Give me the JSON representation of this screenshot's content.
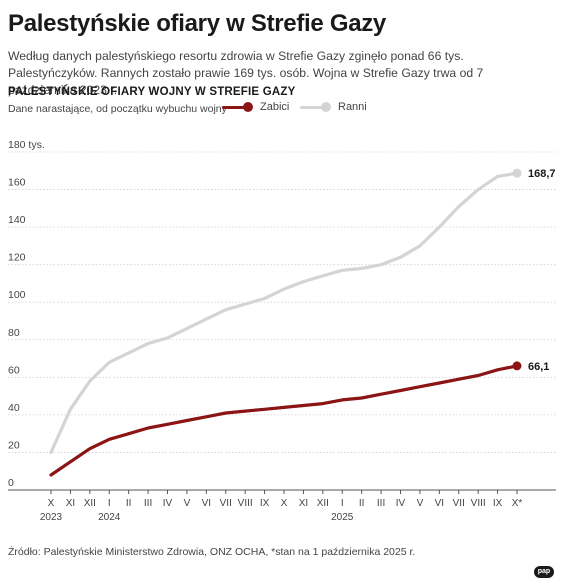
{
  "header": {
    "title": "Palestyńskie ofiary w Strefie Gazy",
    "subtitle": "Według danych palestyńskiego resortu zdrowia w Strefie Gazy zginęło ponad 66 tys. Palestyńczyków. Rannych zostało prawie 169 tys. osób. Wojna w Strefie Gazy trwa od 7 października 2023 r."
  },
  "chart_data": {
    "type": "line",
    "title": "PALESTYŃSKIE OFIARY WOJNY W STREFIE GAZY",
    "subtitle": "Dane narastające, od początku wybuchu wojny",
    "y_unit_label": "180 tys.",
    "ylim": [
      0,
      180
    ],
    "yticks": [
      0,
      20,
      40,
      60,
      80,
      100,
      120,
      140,
      160,
      180
    ],
    "grid": true,
    "legend_placement": "top",
    "categories": [
      "X",
      "XI",
      "XII",
      "I",
      "II",
      "III",
      "IV",
      "V",
      "VI",
      "VII",
      "VIII",
      "IX",
      "X",
      "XI",
      "XII",
      "I",
      "II",
      "III",
      "IV",
      "V",
      "VI",
      "VII",
      "VIII",
      "IX",
      "X*"
    ],
    "year_labels": [
      {
        "index": 0,
        "label": "2023"
      },
      {
        "index": 3,
        "label": "2024"
      },
      {
        "index": 15,
        "label": "2025"
      }
    ],
    "series": [
      {
        "name": "Zabici",
        "color": "#8b1414",
        "values": [
          8,
          15,
          22,
          27,
          30,
          33,
          35,
          37,
          39,
          41,
          42,
          43,
          44,
          45,
          46,
          48,
          49,
          51,
          53,
          55,
          57,
          59,
          61,
          64,
          66.1
        ],
        "end_label": "66,1"
      },
      {
        "name": "Ranni",
        "color": "#d4d4d4",
        "values": [
          20,
          43,
          58,
          68,
          73,
          78,
          81,
          86,
          91,
          96,
          99,
          102,
          107,
          111,
          114,
          117,
          118,
          120,
          124,
          130,
          140,
          151,
          160,
          167,
          168.7
        ],
        "end_label": "168,7"
      }
    ]
  },
  "footer": {
    "source": "Źródło: Palestyńskie Ministerstwo Zdrowia, ONZ OCHA, *stan na 1 października 2025 r.",
    "logo": "pap"
  }
}
